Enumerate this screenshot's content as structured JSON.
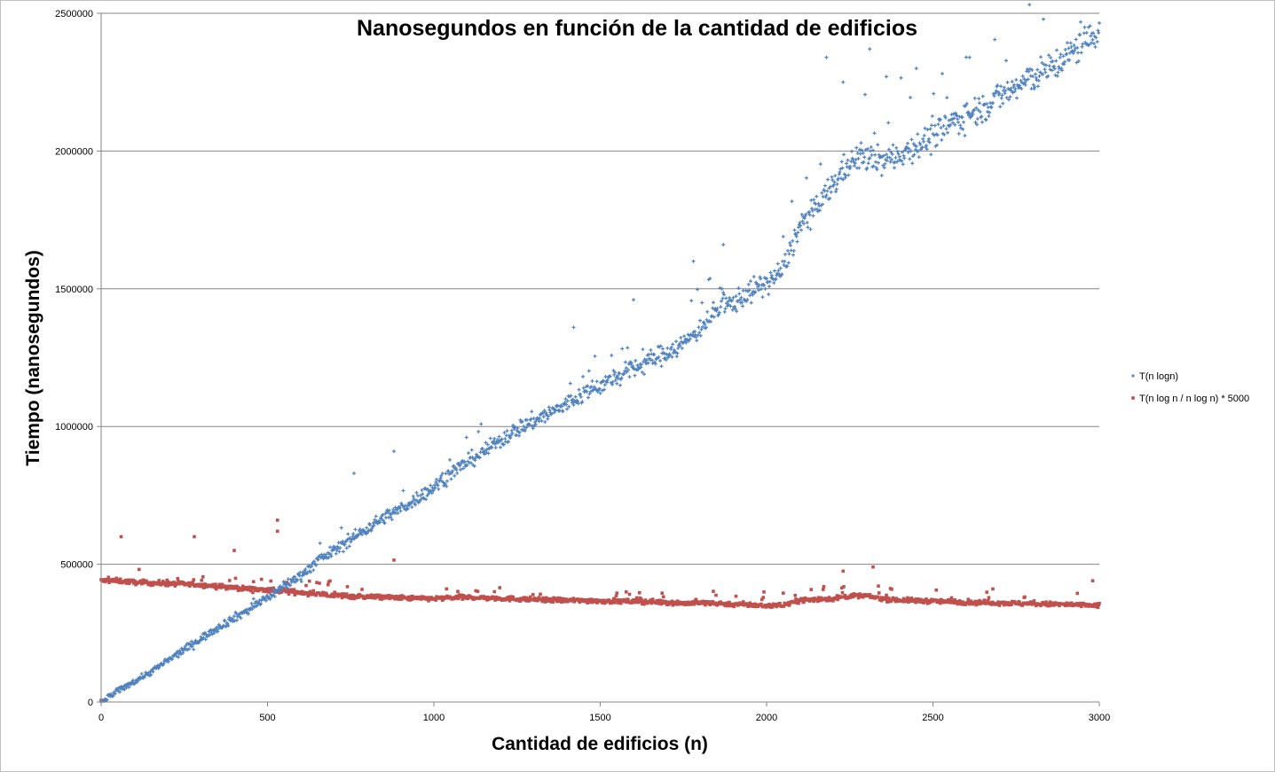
{
  "chart_data": {
    "type": "scatter",
    "title": "Nanosegundos en función de la cantidad de edificios",
    "xlabel": "Cantidad de edificios (n)",
    "ylabel": "Tiempo (nanosegundos)",
    "xlim": [
      0,
      3000
    ],
    "ylim": [
      0,
      2500000
    ],
    "x_ticks": [
      "0",
      "500",
      "1000",
      "1500",
      "2000",
      "2500",
      "3000"
    ],
    "y_ticks": [
      "0",
      "500000",
      "1000000",
      "1500000",
      "2000000",
      "2500000"
    ],
    "grid": "horizontal major gridlines",
    "legend_position": "right",
    "series": [
      {
        "name": "T(n logn)",
        "color": "#4f81bd",
        "marker": "plus",
        "x": [
          0,
          50,
          100,
          150,
          200,
          250,
          300,
          350,
          400,
          450,
          500,
          550,
          600,
          650,
          700,
          750,
          800,
          850,
          900,
          950,
          1000,
          1050,
          1100,
          1150,
          1200,
          1250,
          1300,
          1350,
          1400,
          1450,
          1500,
          1550,
          1600,
          1650,
          1700,
          1750,
          1800,
          1850,
          1900,
          1950,
          2000,
          2050,
          2100,
          2150,
          2200,
          2250,
          2300,
          2350,
          2400,
          2450,
          2500,
          2550,
          2600,
          2650,
          2700,
          2750,
          2800,
          2850,
          2900,
          2950,
          3000
        ],
        "y": [
          0,
          40000,
          75000,
          110000,
          150000,
          190000,
          230000,
          270000,
          305000,
          340000,
          380000,
          420000,
          460000,
          510000,
          550000,
          590000,
          630000,
          670000,
          700000,
          740000,
          780000,
          830000,
          870000,
          910000,
          950000,
          990000,
          1020000,
          1050000,
          1080000,
          1120000,
          1150000,
          1180000,
          1210000,
          1240000,
          1270000,
          1300000,
          1360000,
          1420000,
          1450000,
          1490000,
          1520000,
          1570000,
          1730000,
          1790000,
          1880000,
          1960000,
          1980000,
          1960000,
          1990000,
          2020000,
          2050000,
          2100000,
          2130000,
          2160000,
          2200000,
          2230000,
          2270000,
          2300000,
          2340000,
          2390000,
          2440000
        ],
        "outliers": [
          [
            760,
            830000
          ],
          [
            880,
            910000
          ],
          [
            1420,
            1360000
          ],
          [
            1600,
            1460000
          ],
          [
            1780,
            1600000
          ],
          [
            1870,
            1660000
          ],
          [
            2180,
            2340000
          ],
          [
            2230,
            2250000
          ],
          [
            2310,
            2370000
          ],
          [
            2360,
            2270000
          ],
          [
            2450,
            2300000
          ],
          [
            2610,
            2340000
          ]
        ]
      },
      {
        "name": "T(n log n / n log n) * 5000",
        "color": "#c0504d",
        "marker": "square",
        "x": [
          0,
          50,
          100,
          150,
          200,
          250,
          300,
          350,
          400,
          450,
          500,
          550,
          600,
          650,
          700,
          750,
          800,
          850,
          900,
          950,
          1000,
          1050,
          1100,
          1150,
          1200,
          1250,
          1300,
          1350,
          1400,
          1450,
          1500,
          1550,
          1600,
          1650,
          1700,
          1750,
          1800,
          1850,
          1900,
          1950,
          2000,
          2050,
          2100,
          2150,
          2200,
          2250,
          2300,
          2350,
          2400,
          2450,
          2500,
          2550,
          2600,
          2650,
          2700,
          2750,
          2800,
          2850,
          2900,
          2950,
          3000
        ],
        "y": [
          440000,
          440000,
          435000,
          432000,
          430000,
          428000,
          425000,
          420000,
          415000,
          410000,
          405000,
          402000,
          398000,
          392000,
          388000,
          384000,
          382000,
          380000,
          378000,
          376000,
          375000,
          378000,
          380000,
          378000,
          376000,
          374000,
          372000,
          370000,
          369000,
          368000,
          367000,
          366000,
          365000,
          364000,
          362000,
          358000,
          360000,
          358000,
          355000,
          352000,
          350000,
          352000,
          370000,
          372000,
          375000,
          385000,
          385000,
          375000,
          370000,
          368000,
          366000,
          364000,
          362000,
          361000,
          360000,
          358000,
          356000,
          355000,
          354000,
          352000,
          350000
        ],
        "outliers": [
          [
            0,
            6000
          ],
          [
            60,
            600000
          ],
          [
            280,
            600000
          ],
          [
            530,
            660000
          ],
          [
            530,
            620000
          ],
          [
            400,
            550000
          ],
          [
            880,
            515000
          ],
          [
            2230,
            475000
          ],
          [
            2320,
            490000
          ],
          [
            2980,
            440000
          ]
        ]
      }
    ]
  }
}
